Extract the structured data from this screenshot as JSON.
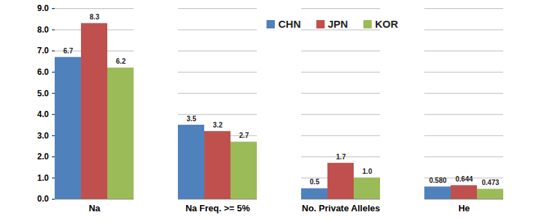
{
  "chart_data": {
    "type": "bar",
    "categories": [
      "Na",
      "Na Freq. >= 5%",
      "No. Private Alleles",
      "He"
    ],
    "series": [
      {
        "name": "CHN",
        "color": "#4F81BD",
        "values": [
          6.7,
          3.5,
          0.5,
          0.58
        ],
        "value_labels": [
          "6.7",
          "3.5",
          "0.5",
          "0.580"
        ]
      },
      {
        "name": "JPN",
        "color": "#C0504D",
        "values": [
          8.3,
          3.2,
          1.7,
          0.644
        ],
        "value_labels": [
          "8.3",
          "3.2",
          "1.7",
          "0.644"
        ]
      },
      {
        "name": "KOR",
        "color": "#9BBB59",
        "values": [
          6.2,
          2.7,
          1.0,
          0.473
        ],
        "value_labels": [
          "6.2",
          "2.7",
          "1.0",
          "0.473"
        ]
      }
    ],
    "ylim": [
      0,
      9
    ],
    "yticks": [
      {
        "value": 0,
        "label": "0.0"
      },
      {
        "value": 1,
        "label": "1.0"
      },
      {
        "value": 2,
        "label": "2.0"
      },
      {
        "value": 3,
        "label": "3.0"
      },
      {
        "value": 4,
        "label": "4.0"
      },
      {
        "value": 5,
        "label": "5.0"
      },
      {
        "value": 6,
        "label": "6.0"
      },
      {
        "value": 7,
        "label": "7.0"
      },
      {
        "value": 8,
        "label": "8.0"
      },
      {
        "value": 9,
        "label": "9.0"
      }
    ],
    "grid": true,
    "legend": "top",
    "data_labels": true
  }
}
